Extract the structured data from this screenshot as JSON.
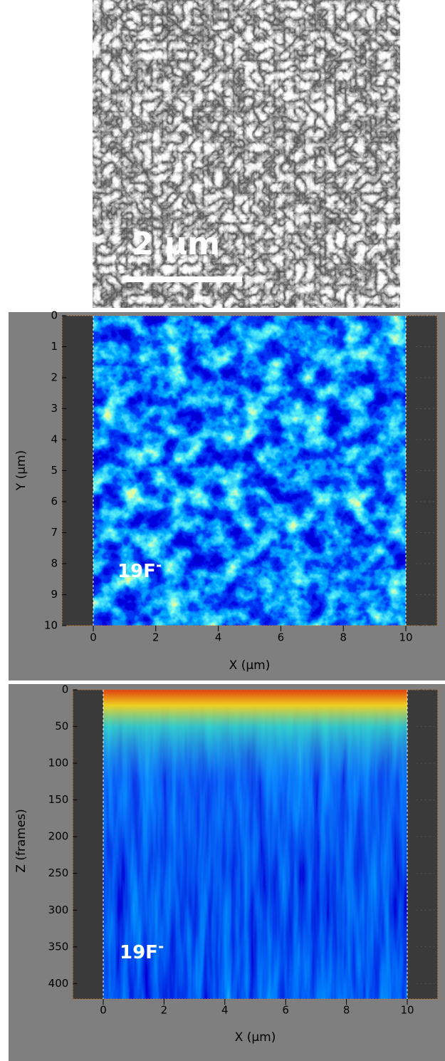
{
  "sem": {
    "scale_bar": "2 μm"
  },
  "panels": [
    {
      "ion": "19F",
      "charge": "-",
      "xlabel": "X (μm)",
      "ylabel": "Y (μm)",
      "xlim": [
        -1,
        11
      ],
      "ylim": [
        0,
        10
      ],
      "xticks": [
        0,
        2,
        4,
        6,
        8,
        10
      ],
      "yticks": [
        0,
        1,
        2,
        3,
        4,
        5,
        6,
        7,
        8,
        9,
        10
      ]
    },
    {
      "ion": "19F",
      "charge": "-",
      "xlabel": "X (μm)",
      "ylabel": "Z (frames)",
      "xlim": [
        -1,
        11
      ],
      "ylim": [
        0,
        421
      ],
      "xticks": [
        0,
        2,
        4,
        6,
        8,
        10
      ],
      "yticks": [
        0,
        50,
        100,
        150,
        200,
        250,
        300,
        350,
        400
      ]
    }
  ]
}
